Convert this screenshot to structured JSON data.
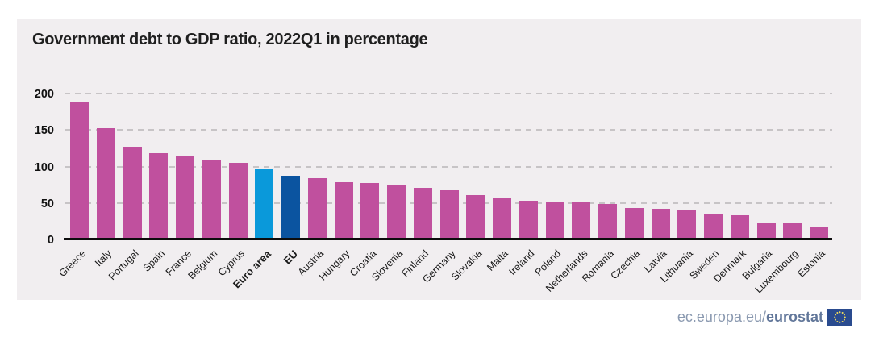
{
  "title": "Government debt to GDP ratio, 2022Q1 in percentage",
  "footer": {
    "url_regular": "ec.europa.eu/",
    "url_bold": "eurostat",
    "flag_icon": "eu-flag-icon"
  },
  "chart_data": {
    "type": "bar",
    "title": "Government debt to GDP ratio, 2022Q1 in percentage",
    "xlabel": "",
    "ylabel": "",
    "ylim": [
      0,
      200
    ],
    "yticks": [
      0,
      50,
      100,
      150,
      200
    ],
    "grid": "horizontal-dashed",
    "legend_position": "none",
    "x_tick_rotation_deg": 45,
    "categories": [
      "Greece",
      "Italy",
      "Portugal",
      "Spain",
      "France",
      "Belgium",
      "Cyprus",
      "Euro area",
      "EU",
      "Austria",
      "Hungary",
      "Croatia",
      "Slovenia",
      "Finland",
      "Germany",
      "Slovakia",
      "Malta",
      "Ireland",
      "Poland",
      "Netherlands",
      "Romania",
      "Czechia",
      "Latvia",
      "Lithuania",
      "Sweden",
      "Denmark",
      "Bulgaria",
      "Luxembourg",
      "Estonia"
    ],
    "values": [
      189.3,
      152.6,
      127.0,
      117.7,
      114.4,
      107.9,
      104.9,
      95.6,
      87.8,
      84.0,
      78.0,
      77.0,
      75.0,
      71.2,
      67.9,
      61.0,
      57.0,
      53.0,
      52.1,
      50.9,
      48.5,
      43.0,
      42.0,
      40.0,
      35.2,
      33.7,
      23.0,
      22.3,
      17.6
    ],
    "emphasized_categories": [
      "Euro area",
      "EU"
    ],
    "colors": {
      "country_bar": "#c0509e",
      "euro_area_bar": "#0a99da",
      "eu_bar": "#0b54a0",
      "card_background": "#f1eef0",
      "page_background": "#ffffff",
      "gridline": "#c7c4c6",
      "axis_line": "#0d0d0d",
      "title_text": "#1f1f1f",
      "footer_regular_text": "#8a99b0",
      "footer_bold_text": "#62779a",
      "flag_blue": "#2a4b8f",
      "flag_stars": "#f5de5a"
    }
  }
}
